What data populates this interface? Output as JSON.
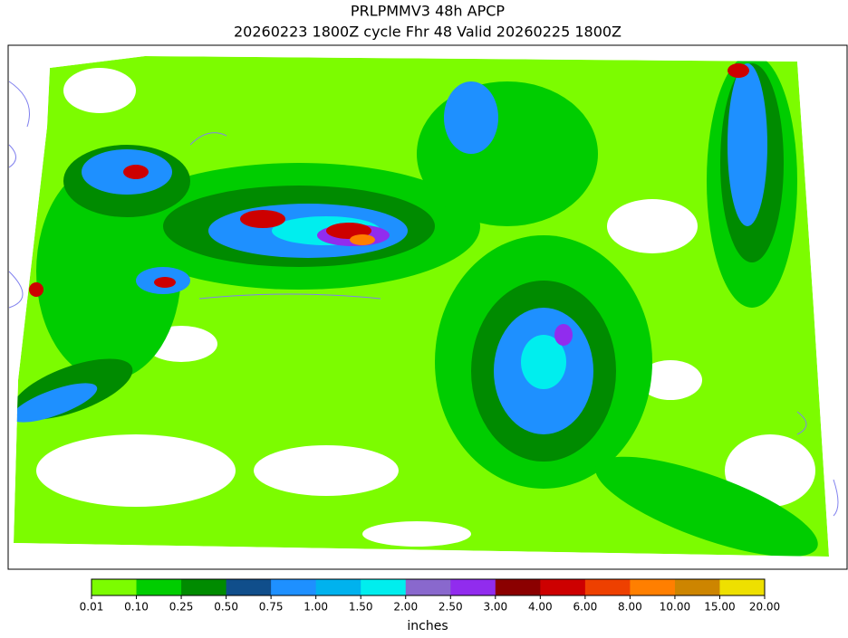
{
  "chart_data": {
    "type": "contour-map",
    "title": "PRLPMMV3 48h APCP",
    "subtitle": "20260223 1800Z cycle Fhr 48 Valid 20260225 1800Z",
    "colorbar": {
      "label": "inches",
      "ticks": [
        0.01,
        {
          "value": 0.1,
          "label": "0.10"
        },
        0.25,
        {
          "value": 0.5,
          "label": "0.50"
        },
        0.75,
        {
          "value": 1,
          "label": "1.00"
        },
        {
          "value": 1.5,
          "label": "1.50"
        },
        {
          "value": 2,
          "label": "2.00"
        },
        {
          "value": 2.5,
          "label": "2.50"
        },
        {
          "value": 3,
          "label": "3.00"
        },
        {
          "value": 4,
          "label": "4.00"
        },
        {
          "value": 6,
          "label": "6.00"
        },
        {
          "value": 8,
          "label": "8.00"
        },
        {
          "value": 10,
          "label": "10.00"
        },
        {
          "value": 15,
          "label": "15.00"
        },
        {
          "value": 20,
          "label": "20.00"
        }
      ],
      "colors": [
        "#7cfc00",
        "#00cd00",
        "#008b00",
        "#104e8b",
        "#1e90ff",
        "#00b2ee",
        "#00eeee",
        "#8968cd",
        "#912cee",
        "#8b0000",
        "#cd0000",
        "#ee4000",
        "#ff7f00",
        "#cd8500",
        "#eee000"
      ]
    }
  }
}
